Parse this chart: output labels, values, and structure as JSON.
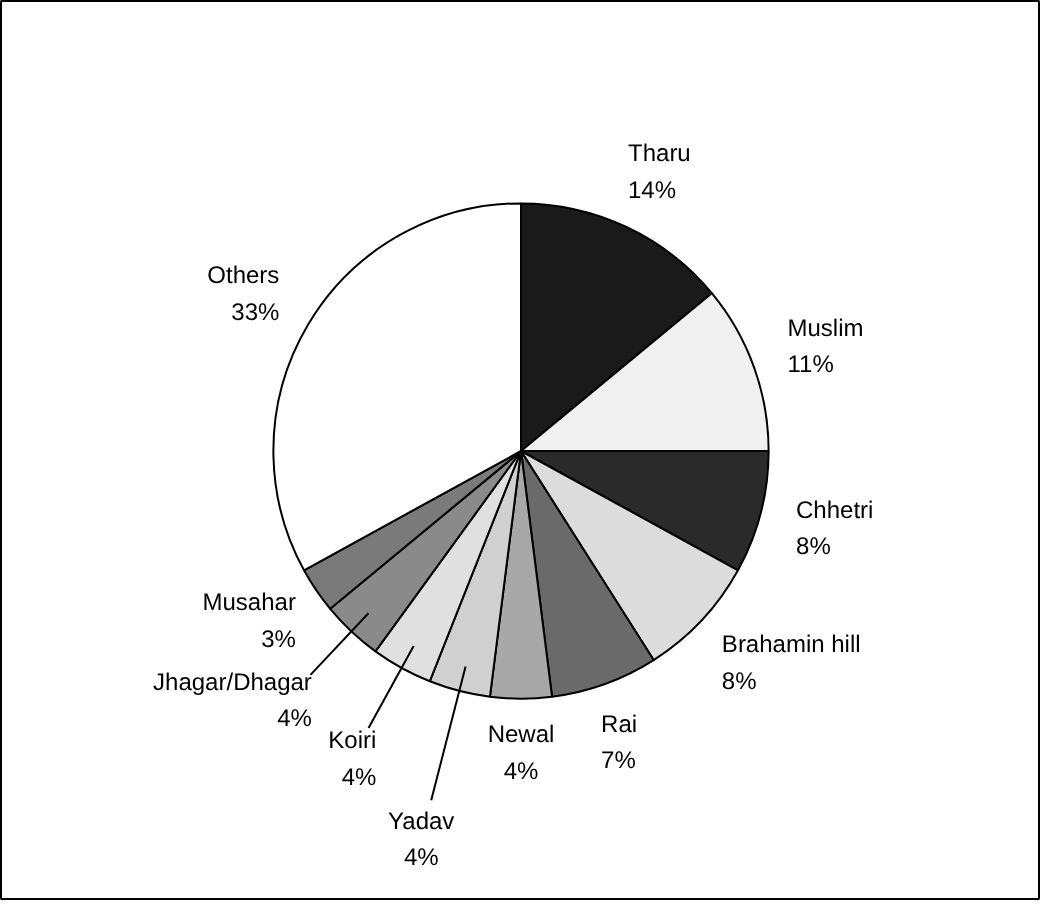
{
  "chart_data": {
    "type": "pie",
    "categories": [
      "Tharu",
      "Muslim",
      "Chhetri",
      "Brahamin hill",
      "Rai",
      "Newal",
      "Yadav",
      "Koiri",
      "Jhagar/Dhagar",
      "Musahar",
      "Others"
    ],
    "values": [
      14,
      11,
      8,
      8,
      7,
      4,
      4,
      4,
      4,
      3,
      33
    ],
    "value_labels": [
      "14%",
      "11%",
      "8%",
      "8%",
      "7%",
      "4%",
      "4%",
      "4%",
      "4%",
      "3%",
      "33%"
    ],
    "colors": [
      "#1a1a1a",
      "#f0f0f0",
      "#2a2a2a",
      "#dcdcdc",
      "#6a6a6a",
      "#a8a8a8",
      "#d0d0d0",
      "#e0e0e0",
      "#8a8a8a",
      "#7a7a7a",
      "#ffffff"
    ]
  }
}
